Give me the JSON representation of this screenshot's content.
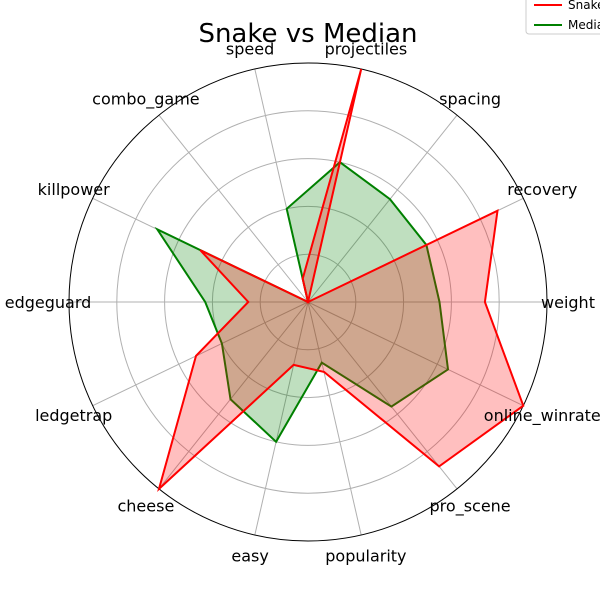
{
  "chart_data": {
    "type": "radar",
    "title": "Snake vs Median",
    "categories": [
      "weight",
      "recovery",
      "spacing",
      "projectiles",
      "speed",
      "combo_game",
      "killpower",
      "edgeguard",
      "ledgetrap",
      "cheese",
      "easy",
      "popularity",
      "pro_scene",
      "online_winrate"
    ],
    "rlim": [
      0,
      1
    ],
    "grid": true,
    "legend_position": "top-right",
    "series": [
      {
        "name": "Snake",
        "color": "#ff0000",
        "fill": "#ff0000",
        "values": [
          0.74,
          0.88,
          0.0,
          1.0,
          0.1,
          0.0,
          0.5,
          0.25,
          0.52,
          1.0,
          0.27,
          0.3,
          0.88,
          1.0
        ]
      },
      {
        "name": "Median",
        "color": "#008000",
        "fill": "#008000",
        "values": [
          0.55,
          0.55,
          0.55,
          0.6,
          0.4,
          0.0,
          0.7,
          0.43,
          0.4,
          0.52,
          0.6,
          0.26,
          0.56,
          0.65
        ]
      }
    ]
  }
}
